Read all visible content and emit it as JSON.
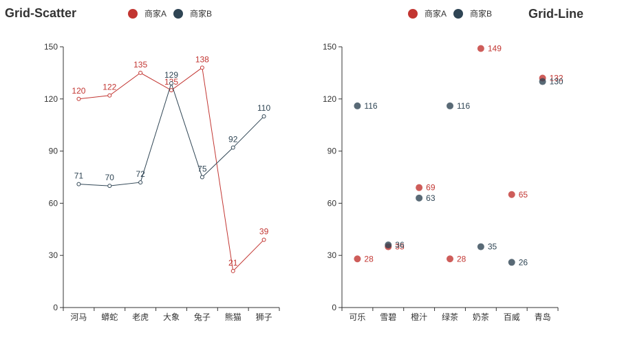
{
  "left": {
    "title": "Grid-Scatter",
    "legend": [
      {
        "label": "商家A",
        "color": "#c23531"
      },
      {
        "label": "商家B",
        "color": "#2f4554"
      }
    ]
  },
  "right": {
    "title": "Grid-Line",
    "legend": [
      {
        "label": "商家A",
        "color": "#c23531"
      },
      {
        "label": "商家B",
        "color": "#2f4554"
      }
    ]
  },
  "chart_data": [
    {
      "type": "line",
      "title": "Grid-Scatter",
      "categories": [
        "河马",
        "蟒蛇",
        "老虎",
        "大象",
        "兔子",
        "熊猫",
        "狮子"
      ],
      "series": [
        {
          "name": "商家A",
          "color": "#c23531",
          "values": [
            120,
            122,
            135,
            125,
            138,
            21,
            39
          ]
        },
        {
          "name": "商家B",
          "color": "#2f4554",
          "values": [
            71,
            70,
            72,
            129,
            75,
            92,
            110
          ]
        }
      ],
      "yticks": [
        0,
        30,
        60,
        90,
        120,
        150
      ],
      "ylim": [
        0,
        150
      ],
      "xlabel": "",
      "ylabel": "",
      "grid": false,
      "legend_position": "top"
    },
    {
      "type": "scatter",
      "title": "Grid-Line",
      "categories": [
        "可乐",
        "雪碧",
        "橙汁",
        "绿茶",
        "奶茶",
        "百威",
        "青岛"
      ],
      "series": [
        {
          "name": "商家A",
          "color": "#c23531",
          "values": [
            28,
            35,
            69,
            28,
            149,
            65,
            132
          ]
        },
        {
          "name": "商家B",
          "color": "#2f4554",
          "values": [
            116,
            36,
            63,
            116,
            35,
            26,
            130
          ]
        }
      ],
      "yticks": [
        0,
        30,
        60,
        90,
        120,
        150
      ],
      "ylim": [
        0,
        150
      ],
      "xlabel": "",
      "ylabel": "",
      "grid": false,
      "legend_position": "top"
    }
  ]
}
